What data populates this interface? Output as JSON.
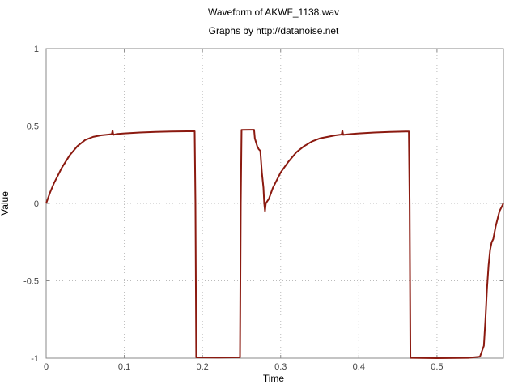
{
  "chart_data": {
    "type": "line",
    "title": "Waveform of AKWF_1138.wav",
    "subtitle": "Graphs by http://datanoise.net",
    "xlabel": "Time",
    "ylabel": "Value",
    "xlim": [
      0,
      0.585
    ],
    "ylim": [
      -1,
      1
    ],
    "xticks": [
      0,
      0.1,
      0.2,
      0.3,
      0.4,
      0.5
    ],
    "xtick_labels": [
      "0",
      "0.1",
      "0.2",
      "0.3",
      "0.4",
      "0.5"
    ],
    "yticks": [
      -1,
      -0.5,
      0,
      0.5,
      1
    ],
    "ytick_labels": [
      "-1",
      "-0.5",
      "0",
      "0.5",
      "1"
    ],
    "grid": true,
    "legend": "none",
    "series": [
      {
        "color": "#8b1a10",
        "x": [
          0,
          0.005,
          0.01,
          0.02,
          0.03,
          0.04,
          0.05,
          0.06,
          0.07,
          0.08,
          0.084,
          0.085,
          0.086,
          0.09,
          0.1,
          0.12,
          0.14,
          0.16,
          0.18,
          0.19,
          0.191,
          0.192,
          0.22,
          0.248,
          0.249,
          0.25,
          0.26,
          0.266,
          0.267,
          0.27,
          0.272,
          0.274,
          0.276,
          0.278,
          0.279,
          0.28,
          0.281,
          0.285,
          0.29,
          0.3,
          0.31,
          0.32,
          0.33,
          0.34,
          0.35,
          0.36,
          0.37,
          0.378,
          0.379,
          0.38,
          0.39,
          0.4,
          0.42,
          0.44,
          0.46,
          0.464,
          0.465,
          0.466,
          0.5,
          0.54,
          0.555,
          0.56,
          0.562,
          0.564,
          0.566,
          0.568,
          0.57,
          0.572,
          0.575,
          0.58,
          0.585
        ],
        "y": [
          0,
          0.07,
          0.13,
          0.23,
          0.31,
          0.37,
          0.41,
          0.43,
          0.44,
          0.445,
          0.448,
          0.47,
          0.443,
          0.448,
          0.452,
          0.458,
          0.462,
          0.465,
          0.466,
          0.466,
          0.0,
          -0.995,
          -0.996,
          -0.994,
          0.0,
          0.475,
          0.476,
          0.476,
          0.42,
          0.37,
          0.35,
          0.34,
          0.2,
          0.1,
          0.0,
          -0.05,
          0.0,
          0.03,
          0.1,
          0.2,
          0.27,
          0.33,
          0.37,
          0.4,
          0.42,
          0.43,
          0.44,
          0.445,
          0.47,
          0.443,
          0.448,
          0.452,
          0.458,
          0.462,
          0.465,
          0.465,
          0.0,
          -0.998,
          -1.0,
          -0.998,
          -0.99,
          -0.92,
          -0.75,
          -0.55,
          -0.4,
          -0.3,
          -0.25,
          -0.23,
          -0.15,
          -0.05,
          0.0
        ]
      }
    ]
  }
}
